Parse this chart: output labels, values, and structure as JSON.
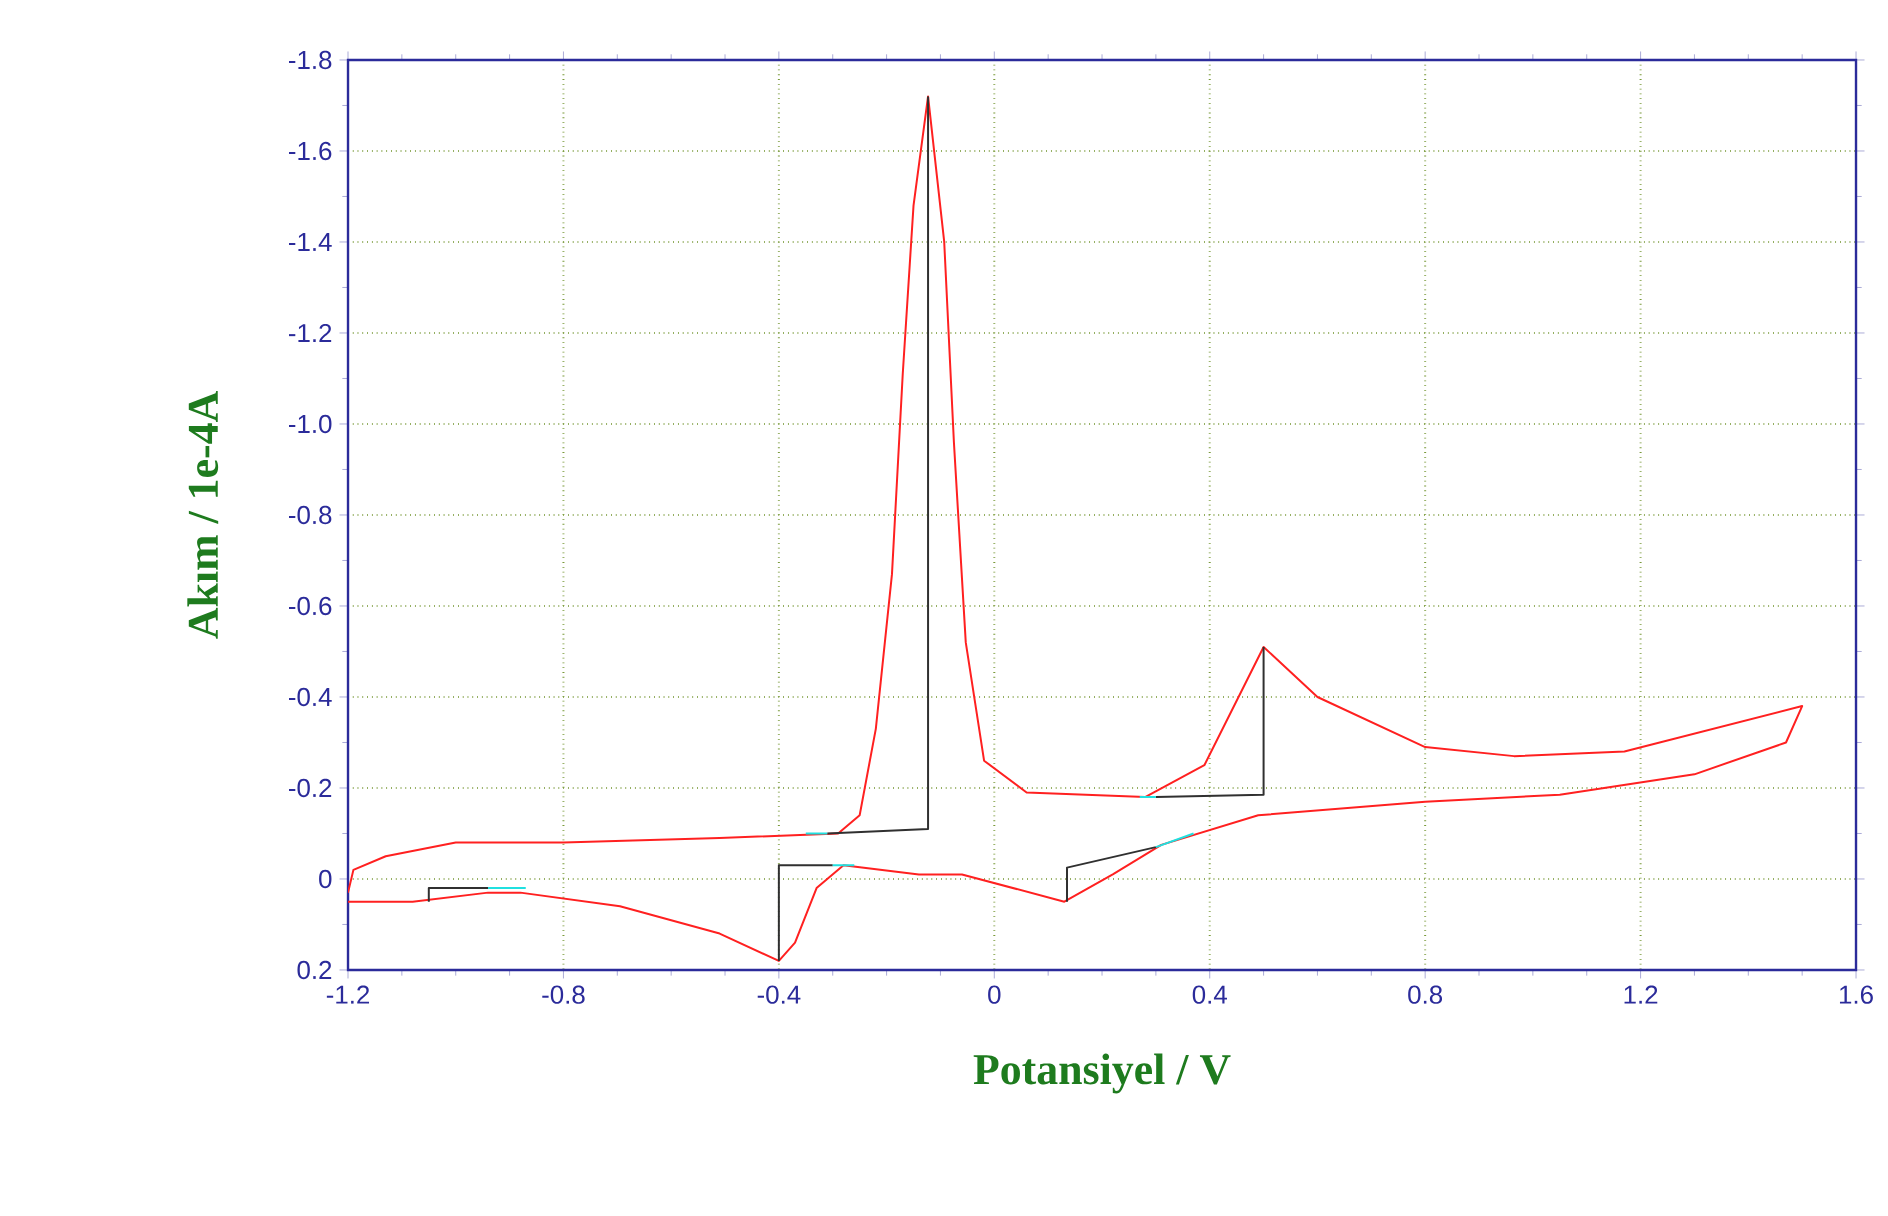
{
  "chart_data": {
    "type": "line",
    "xlabel": "Potansiyel / V",
    "ylabel": "Akım / 1e-4A",
    "xlim": [
      -1.2,
      1.6
    ],
    "ylim": [
      0.2,
      -1.8
    ],
    "xticks": [
      {
        "value": -1.2,
        "label": "-1.2"
      },
      {
        "value": -0.8,
        "label": "-0.8"
      },
      {
        "value": -0.4,
        "label": "-0.4"
      },
      {
        "value": 0,
        "label": "0"
      },
      {
        "value": 0.4,
        "label": "0.4"
      },
      {
        "value": 0.8,
        "label": "0.8"
      },
      {
        "value": 1.2,
        "label": "1.2"
      },
      {
        "value": 1.6,
        "label": "1.6"
      }
    ],
    "yticks": [
      {
        "value": -1.8,
        "label": "-1.8"
      },
      {
        "value": -1.6,
        "label": "-1.6"
      },
      {
        "value": -1.4,
        "label": "-1.4"
      },
      {
        "value": -1.2,
        "label": "-1.2"
      },
      {
        "value": -1.0,
        "label": "-1.0"
      },
      {
        "value": -0.8,
        "label": "-0.8"
      },
      {
        "value": -0.6,
        "label": "-0.6"
      },
      {
        "value": -0.4,
        "label": "-0.4"
      },
      {
        "value": -0.2,
        "label": "-0.2"
      },
      {
        "value": 0,
        "label": "0"
      },
      {
        "value": 0.2,
        "label": "0.2"
      }
    ],
    "grid": true,
    "line_style": "solid",
    "marker": "none",
    "series": [
      {
        "color": "#ff2020",
        "x": [
          -1.2,
          -1.19,
          -1.13,
          -1.0,
          -0.8,
          -0.51,
          -0.29,
          -0.25,
          -0.22,
          -0.19,
          -0.17,
          -0.15,
          -0.123,
          -0.093,
          -0.075,
          -0.053,
          -0.019,
          0.06,
          0.28,
          0.39,
          0.5,
          0.6,
          0.8,
          0.965,
          1.17,
          1.5,
          1.47,
          1.3,
          1.05,
          0.8,
          0.49,
          0.31,
          0.22,
          0.13,
          -0.06,
          -0.14,
          -0.28,
          -0.33,
          -0.37,
          -0.4,
          -0.51,
          -0.695,
          -0.88,
          -0.94,
          -1.08,
          -1.2
        ],
        "values": [
          0.03,
          -0.02,
          -0.05,
          -0.08,
          -0.08,
          -0.09,
          -0.1,
          -0.14,
          -0.33,
          -0.67,
          -1.11,
          -1.48,
          -1.72,
          -1.4,
          -0.96,
          -0.52,
          -0.26,
          -0.19,
          -0.18,
          -0.25,
          -0.51,
          -0.4,
          -0.29,
          -0.27,
          -0.28,
          -0.38,
          -0.3,
          -0.23,
          -0.185,
          -0.17,
          -0.14,
          -0.075,
          -0.01,
          0.05,
          -0.01,
          -0.01,
          -0.03,
          0.02,
          0.14,
          0.18,
          0.12,
          0.06,
          0.03,
          0.03,
          0.05,
          0.05
        ]
      },
      {
        "color": "#303030",
        "x": [
          -0.31,
          -0.123,
          -0.123,
          null,
          0.3,
          0.5,
          0.5,
          null,
          -0.4,
          -0.4,
          -0.3,
          null,
          0.135,
          0.135,
          0.3,
          null,
          -1.05,
          -1.05,
          -0.94
        ],
        "values": [
          -0.1,
          -0.11,
          -1.72,
          null,
          -0.18,
          -0.185,
          -0.51,
          null,
          0.18,
          -0.03,
          -0.03,
          null,
          0.05,
          -0.025,
          -0.07,
          null,
          0.05,
          0.02,
          0.02
        ]
      },
      {
        "color": "#20e0e0",
        "x": [
          -0.94,
          -0.87,
          null,
          -0.35,
          -0.31,
          null,
          -0.3,
          -0.26,
          null,
          0.3,
          0.37,
          null,
          0.27,
          0.3
        ],
        "values": [
          0.02,
          0.02,
          null,
          -0.1,
          -0.1,
          null,
          -0.03,
          -0.03,
          null,
          -0.07,
          -0.1,
          null,
          -0.18,
          -0.18
        ]
      }
    ]
  }
}
